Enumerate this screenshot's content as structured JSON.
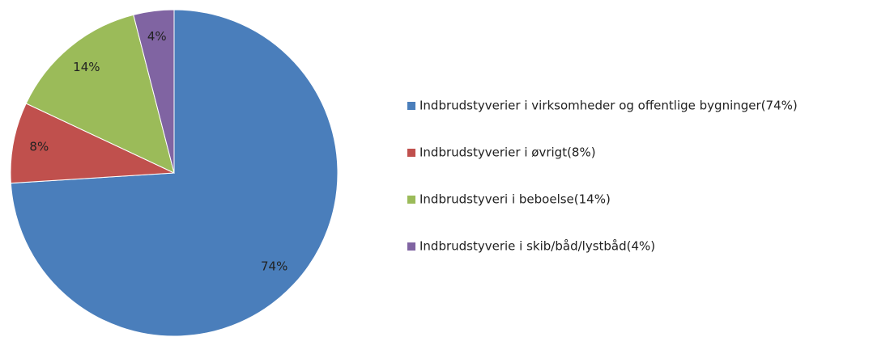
{
  "chart_data": {
    "type": "pie",
    "categories": [
      "Indbrudstyverier i virksomheder og offentlige bygninger(74%)",
      "Indbrudstyverier i øvrigt(8%)",
      "Indbrudstyveri i beboelse(14%)",
      "Indbrudstyverie i skib/båd/lystbåd(4%)"
    ],
    "values": [
      74,
      8,
      14,
      4
    ],
    "value_labels": [
      "74%",
      "8%",
      "14%",
      "4%"
    ],
    "colors": [
      "#4a7ebb",
      "#c0504d",
      "#9bbb59",
      "#8064a2"
    ],
    "legend": "right"
  }
}
